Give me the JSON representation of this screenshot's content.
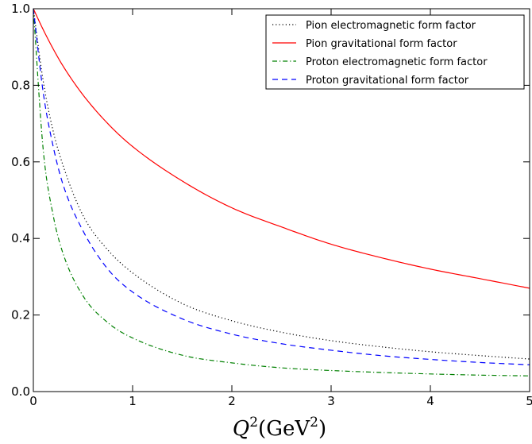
{
  "chart_data": {
    "type": "line",
    "xlabel_parts": {
      "var": "Q",
      "sup1": "2",
      "open": "(GeV",
      "sup2": "2",
      "close": ")"
    },
    "xlim": [
      0,
      5
    ],
    "ylim": [
      0,
      1.0
    ],
    "xticks": [
      0,
      1,
      2,
      3,
      4,
      5
    ],
    "xtick_labels": [
      "0",
      "1",
      "2",
      "3",
      "4",
      "5"
    ],
    "yticks": [
      0,
      0.2,
      0.4,
      0.6,
      0.8,
      1.0
    ],
    "ytick_labels": [
      "0.0",
      "0.2",
      "0.4",
      "0.6",
      "0.8",
      "1.0"
    ],
    "grid": false,
    "legend_position": "top-right",
    "series": [
      {
        "name": "Pion electromagnetic form factor",
        "color": "#000000",
        "dash": "dotted",
        "x": [
          0,
          0.1,
          0.2,
          0.3,
          0.5,
          0.75,
          1,
          1.5,
          2,
          2.5,
          3,
          3.5,
          4,
          4.5,
          5
        ],
        "y": [
          1.0,
          0.81,
          0.68,
          0.59,
          0.46,
          0.37,
          0.31,
          0.23,
          0.185,
          0.155,
          0.133,
          0.117,
          0.104,
          0.094,
          0.085
        ]
      },
      {
        "name": "Pion gravitational form factor",
        "color": "#ff0000",
        "dash": "solid",
        "x": [
          0,
          0.1,
          0.2,
          0.3,
          0.5,
          0.75,
          1,
          1.5,
          2,
          2.5,
          3,
          3.5,
          4,
          4.5,
          5
        ],
        "y": [
          1.0,
          0.945,
          0.895,
          0.85,
          0.775,
          0.7,
          0.64,
          0.55,
          0.48,
          0.43,
          0.385,
          0.35,
          0.32,
          0.295,
          0.27
        ]
      },
      {
        "name": "Proton electromagnetic form factor",
        "color": "#008000",
        "dash": "dashdot",
        "x": [
          0,
          0.1,
          0.2,
          0.3,
          0.5,
          0.75,
          1,
          1.5,
          2,
          2.5,
          3,
          3.5,
          4,
          4.5,
          5
        ],
        "y": [
          1.0,
          0.63,
          0.46,
          0.36,
          0.25,
          0.18,
          0.14,
          0.095,
          0.075,
          0.062,
          0.055,
          0.05,
          0.046,
          0.043,
          0.041
        ]
      },
      {
        "name": "Proton gravitational form factor",
        "color": "#0000ff",
        "dash": "dashed",
        "x": [
          0,
          0.1,
          0.2,
          0.3,
          0.5,
          0.75,
          1,
          1.5,
          2,
          2.5,
          3,
          3.5,
          4,
          4.5,
          5
        ],
        "y": [
          1.0,
          0.78,
          0.64,
          0.54,
          0.42,
          0.32,
          0.26,
          0.19,
          0.15,
          0.125,
          0.108,
          0.094,
          0.084,
          0.076,
          0.07
        ]
      }
    ]
  }
}
